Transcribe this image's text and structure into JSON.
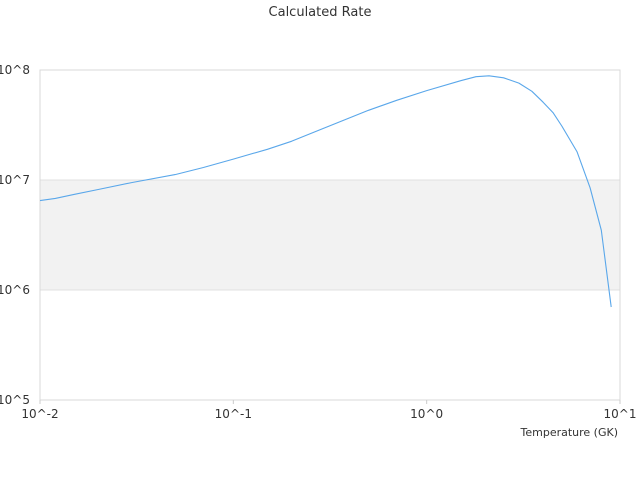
{
  "chart_data": {
    "type": "line",
    "title": "Calculated Rate",
    "xlabel": "Temperature (GK)",
    "ylabel": "",
    "xscale": "log",
    "yscale": "log",
    "xlim": [
      0.01,
      10
    ],
    "ylim": [
      100000,
      100000000
    ],
    "x_tick_labels": [
      "10^-2",
      "10^-1",
      "10^0",
      "10^1"
    ],
    "y_tick_labels": [
      "10^5",
      "10^6",
      "10^7",
      "10^8"
    ],
    "grid": true,
    "alternating_band_fill": "#f2f2f2",
    "series": [
      {
        "color": "#5aa7ea",
        "x": [
          0.01,
          0.012,
          0.015,
          0.02,
          0.03,
          0.05,
          0.07,
          0.1,
          0.15,
          0.2,
          0.3,
          0.5,
          0.7,
          1.0,
          1.5,
          1.8,
          2.1,
          2.5,
          3.0,
          3.5,
          4.0,
          4.5,
          5.0,
          6.0,
          7.0,
          8.0,
          9.0
        ],
        "y": [
          6500000,
          6800000,
          7400000,
          8200000,
          9500000,
          11200000,
          13000000,
          15500000,
          19000000,
          22500000,
          30000000,
          43000000,
          53000000,
          65000000,
          80000000,
          87000000,
          88500000,
          85000000,
          76000000,
          64000000,
          51000000,
          41000000,
          31000000,
          18000000,
          8500000,
          3500000,
          700000
        ]
      }
    ]
  }
}
